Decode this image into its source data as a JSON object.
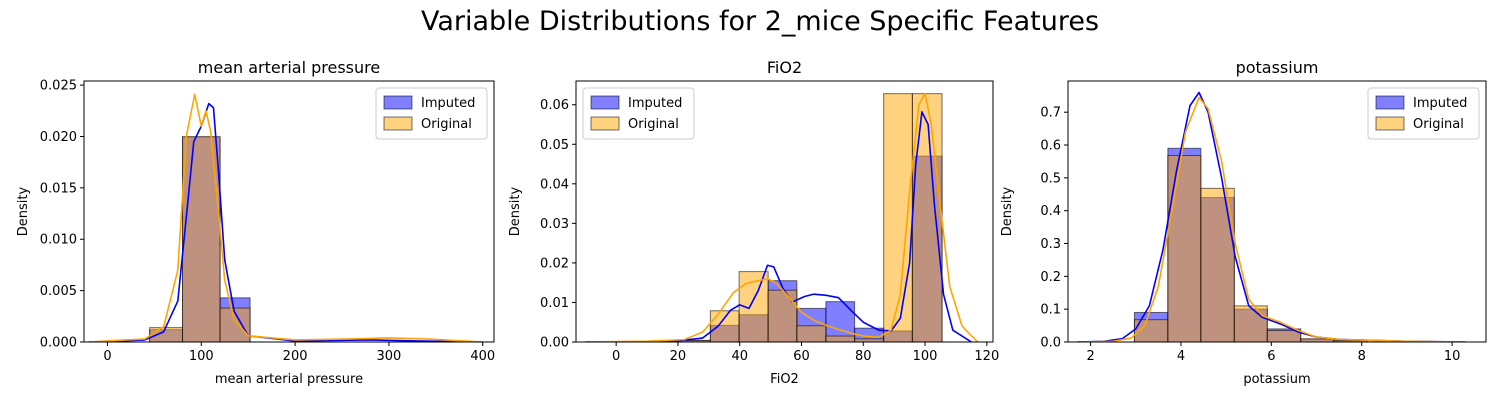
{
  "figure": {
    "title": "Variable Distributions for 2_mice Specific Features"
  },
  "chart_data": [
    {
      "type": "histogram",
      "title": "mean arterial pressure",
      "xlabel": "mean arterial pressure",
      "ylabel": "Density",
      "xlim": [
        -25,
        412
      ],
      "ylim": [
        0,
        0.0254
      ],
      "xticks": [
        0,
        100,
        200,
        300,
        400
      ],
      "yticks": [
        0.0,
        0.005,
        0.01,
        0.015,
        0.02,
        0.025
      ],
      "ytick_labels": [
        "0.000",
        "0.005",
        "0.010",
        "0.015",
        "0.020",
        "0.025"
      ],
      "legend": {
        "position": "top-right",
        "entries": [
          "Imputed",
          "Original"
        ]
      },
      "series": [
        {
          "name": "Imputed",
          "color": "#0000ff",
          "bars": [
            {
              "x0": 45,
              "x1": 80,
              "y": 0.0012
            },
            {
              "x0": 80,
              "x1": 120,
              "y": 0.0199
            },
            {
              "x0": 120,
              "x1": 152,
              "y": 0.0043
            }
          ],
          "kde": [
            [
              -20,
              0
            ],
            [
              0,
              5e-05
            ],
            [
              40,
              0.0002
            ],
            [
              60,
              0.001
            ],
            [
              75,
              0.004
            ],
            [
              85,
              0.013
            ],
            [
              92,
              0.0195
            ],
            [
              100,
              0.021
            ],
            [
              108,
              0.0232
            ],
            [
              113,
              0.0228
            ],
            [
              118,
              0.017
            ],
            [
              125,
              0.008
            ],
            [
              135,
              0.003
            ],
            [
              150,
              0.0006
            ],
            [
              200,
              0.0001
            ],
            [
              280,
              0.0002
            ],
            [
              330,
              0.0001
            ],
            [
              400,
              0
            ]
          ]
        },
        {
          "name": "Original",
          "color": "#ffa500",
          "bars": [
            {
              "x0": 45,
              "x1": 80,
              "y": 0.0014
            },
            {
              "x0": 80,
              "x1": 120,
              "y": 0.02
            },
            {
              "x0": 120,
              "x1": 152,
              "y": 0.0033
            }
          ],
          "kde": [
            [
              -20,
              0
            ],
            [
              0,
              0.0001
            ],
            [
              40,
              0.0003
            ],
            [
              60,
              0.0015
            ],
            [
              75,
              0.007
            ],
            [
              84,
              0.02
            ],
            [
              93,
              0.0241
            ],
            [
              100,
              0.021
            ],
            [
              105,
              0.0225
            ],
            [
              110,
              0.0205
            ],
            [
              118,
              0.013
            ],
            [
              125,
              0.006
            ],
            [
              135,
              0.0022
            ],
            [
              150,
              0.0006
            ],
            [
              200,
              0.0002
            ],
            [
              260,
              0.0003
            ],
            [
              300,
              0.0004
            ],
            [
              340,
              0.0003
            ],
            [
              380,
              0.0001
            ],
            [
              400,
              0
            ]
          ]
        }
      ]
    },
    {
      "type": "histogram",
      "title": "FiO2",
      "xlabel": "FiO2",
      "ylabel": "Density",
      "xlim": [
        -13,
        122
      ],
      "ylim": [
        0,
        0.066
      ],
      "xticks": [
        0,
        20,
        40,
        60,
        80,
        100,
        120
      ],
      "yticks": [
        0.0,
        0.01,
        0.02,
        0.03,
        0.04,
        0.05,
        0.06
      ],
      "ytick_labels": [
        "0.00",
        "0.01",
        "0.02",
        "0.03",
        "0.04",
        "0.05",
        "0.06"
      ],
      "legend": {
        "position": "top-left",
        "entries": [
          "Imputed",
          "Original"
        ]
      },
      "series": [
        {
          "name": "Imputed",
          "color": "#0000ff",
          "bars": [
            {
              "x0": 21,
              "x1": 30.5,
              "y": 0.0004
            },
            {
              "x0": 30.5,
              "x1": 39.8,
              "y": 0.0042
            },
            {
              "x0": 39.8,
              "x1": 49.2,
              "y": 0.0069
            },
            {
              "x0": 49.2,
              "x1": 58.5,
              "y": 0.0155
            },
            {
              "x0": 58.5,
              "x1": 67.9,
              "y": 0.0085
            },
            {
              "x0": 67.9,
              "x1": 77.2,
              "y": 0.0102
            },
            {
              "x0": 77.2,
              "x1": 86.6,
              "y": 0.0035
            },
            {
              "x0": 86.6,
              "x1": 95.9,
              "y": 0.0028
            },
            {
              "x0": 95.9,
              "x1": 105.5,
              "y": 0.047
            }
          ],
          "kde": [
            [
              -10,
              0
            ],
            [
              10,
              0.0001
            ],
            [
              20,
              0.0003
            ],
            [
              28,
              0.001
            ],
            [
              33,
              0.004
            ],
            [
              37,
              0.008
            ],
            [
              40,
              0.0094
            ],
            [
              43,
              0.0085
            ],
            [
              46,
              0.013
            ],
            [
              49,
              0.0194
            ],
            [
              51,
              0.019
            ],
            [
              54,
              0.0135
            ],
            [
              57,
              0.0101
            ],
            [
              61,
              0.0115
            ],
            [
              64,
              0.0121
            ],
            [
              68,
              0.0118
            ],
            [
              72,
              0.0112
            ],
            [
              76,
              0.008
            ],
            [
              80,
              0.005
            ],
            [
              85,
              0.003
            ],
            [
              89,
              0.0028
            ],
            [
              92,
              0.006
            ],
            [
              95,
              0.02
            ],
            [
              97,
              0.045
            ],
            [
              99,
              0.0582
            ],
            [
              101,
              0.055
            ],
            [
              103,
              0.035
            ],
            [
              106,
              0.012
            ],
            [
              109,
              0.003
            ],
            [
              115,
              0
            ]
          ]
        },
        {
          "name": "Original",
          "color": "#ffa500",
          "bars": [
            {
              "x0": 21,
              "x1": 30.5,
              "y": 0.0004
            },
            {
              "x0": 30.5,
              "x1": 39.8,
              "y": 0.0079
            },
            {
              "x0": 39.8,
              "x1": 49.2,
              "y": 0.0178
            },
            {
              "x0": 49.2,
              "x1": 58.5,
              "y": 0.0131
            },
            {
              "x0": 58.5,
              "x1": 67.9,
              "y": 0.0041
            },
            {
              "x0": 67.9,
              "x1": 77.2,
              "y": 0.0015
            },
            {
              "x0": 77.2,
              "x1": 86.6,
              "y": 0.0008
            },
            {
              "x0": 86.6,
              "x1": 95.9,
              "y": 0.0628
            },
            {
              "x0": 95.9,
              "x1": 105.5,
              "y": 0.0628
            }
          ],
          "kde": [
            [
              -10,
              0
            ],
            [
              10,
              0.0002
            ],
            [
              22,
              0.0006
            ],
            [
              28,
              0.0025
            ],
            [
              33,
              0.007
            ],
            [
              38,
              0.0125
            ],
            [
              42,
              0.0148
            ],
            [
              46,
              0.0155
            ],
            [
              49,
              0.016
            ],
            [
              52,
              0.0148
            ],
            [
              56,
              0.0112
            ],
            [
              60,
              0.0075
            ],
            [
              64,
              0.0055
            ],
            [
              68,
              0.0042
            ],
            [
              72,
              0.0032
            ],
            [
              76,
              0.0022
            ],
            [
              80,
              0.0015
            ],
            [
              85,
              0.0012
            ],
            [
              89,
              0.003
            ],
            [
              92,
              0.012
            ],
            [
              95,
              0.038
            ],
            [
              98,
              0.06
            ],
            [
              100,
              0.0628
            ],
            [
              102,
              0.055
            ],
            [
              105,
              0.034
            ],
            [
              108,
              0.014
            ],
            [
              112,
              0.004
            ],
            [
              117,
              0
            ]
          ]
        }
      ]
    },
    {
      "type": "histogram",
      "title": "potassium",
      "xlabel": "potassium",
      "ylabel": "Density",
      "xlim": [
        1.5,
        10.75
      ],
      "ylim": [
        0,
        0.795
      ],
      "xticks": [
        2,
        4,
        6,
        8,
        10
      ],
      "yticks": [
        0.0,
        0.1,
        0.2,
        0.3,
        0.4,
        0.5,
        0.6,
        0.7
      ],
      "ytick_labels": [
        "0.0",
        "0.1",
        "0.2",
        "0.3",
        "0.4",
        "0.5",
        "0.6",
        "0.7"
      ],
      "legend": {
        "position": "top-right",
        "entries": [
          "Imputed",
          "Original"
        ]
      },
      "series": [
        {
          "name": "Imputed",
          "color": "#0000ff",
          "bars": [
            {
              "x0": 2.97,
              "x1": 3.71,
              "y": 0.09
            },
            {
              "x0": 3.71,
              "x1": 4.44,
              "y": 0.59
            },
            {
              "x0": 4.44,
              "x1": 5.18,
              "y": 0.44
            },
            {
              "x0": 5.18,
              "x1": 5.91,
              "y": 0.1
            },
            {
              "x0": 5.91,
              "x1": 6.65,
              "y": 0.04
            },
            {
              "x0": 6.65,
              "x1": 7.38,
              "y": 0.008
            },
            {
              "x0": 7.38,
              "x1": 8.12,
              "y": 0.004
            }
          ],
          "kde": [
            [
              1.7,
              0
            ],
            [
              2.3,
              0.002
            ],
            [
              2.7,
              0.01
            ],
            [
              3.0,
              0.04
            ],
            [
              3.3,
              0.11
            ],
            [
              3.6,
              0.28
            ],
            [
              3.9,
              0.52
            ],
            [
              4.2,
              0.72
            ],
            [
              4.4,
              0.76
            ],
            [
              4.6,
              0.7
            ],
            [
              4.9,
              0.5
            ],
            [
              5.2,
              0.26
            ],
            [
              5.5,
              0.11
            ],
            [
              5.8,
              0.075
            ],
            [
              6.2,
              0.055
            ],
            [
              6.6,
              0.03
            ],
            [
              7.0,
              0.015
            ],
            [
              7.5,
              0.008
            ],
            [
              8.0,
              0.006
            ],
            [
              9.0,
              0.002
            ],
            [
              10.3,
              0
            ]
          ]
        },
        {
          "name": "Original",
          "color": "#ffa500",
          "bars": [
            {
              "x0": 2.97,
              "x1": 3.71,
              "y": 0.068
            },
            {
              "x0": 3.71,
              "x1": 4.44,
              "y": 0.568
            },
            {
              "x0": 4.44,
              "x1": 5.18,
              "y": 0.468
            },
            {
              "x0": 5.18,
              "x1": 5.91,
              "y": 0.11
            },
            {
              "x0": 5.91,
              "x1": 6.65,
              "y": 0.035
            },
            {
              "x0": 6.65,
              "x1": 7.38,
              "y": 0.01
            },
            {
              "x0": 7.38,
              "x1": 8.12,
              "y": 0.005
            }
          ],
          "kde": [
            [
              1.7,
              0
            ],
            [
              2.5,
              0.002
            ],
            [
              2.9,
              0.012
            ],
            [
              3.2,
              0.05
            ],
            [
              3.5,
              0.17
            ],
            [
              3.8,
              0.4
            ],
            [
              4.1,
              0.64
            ],
            [
              4.4,
              0.745
            ],
            [
              4.6,
              0.71
            ],
            [
              4.9,
              0.55
            ],
            [
              5.2,
              0.3
            ],
            [
              5.5,
              0.13
            ],
            [
              5.8,
              0.08
            ],
            [
              6.2,
              0.06
            ],
            [
              6.6,
              0.035
            ],
            [
              7.0,
              0.015
            ],
            [
              7.5,
              0.008
            ],
            [
              8.0,
              0.006
            ],
            [
              9.0,
              0.002
            ],
            [
              10.3,
              0
            ]
          ]
        }
      ]
    }
  ]
}
